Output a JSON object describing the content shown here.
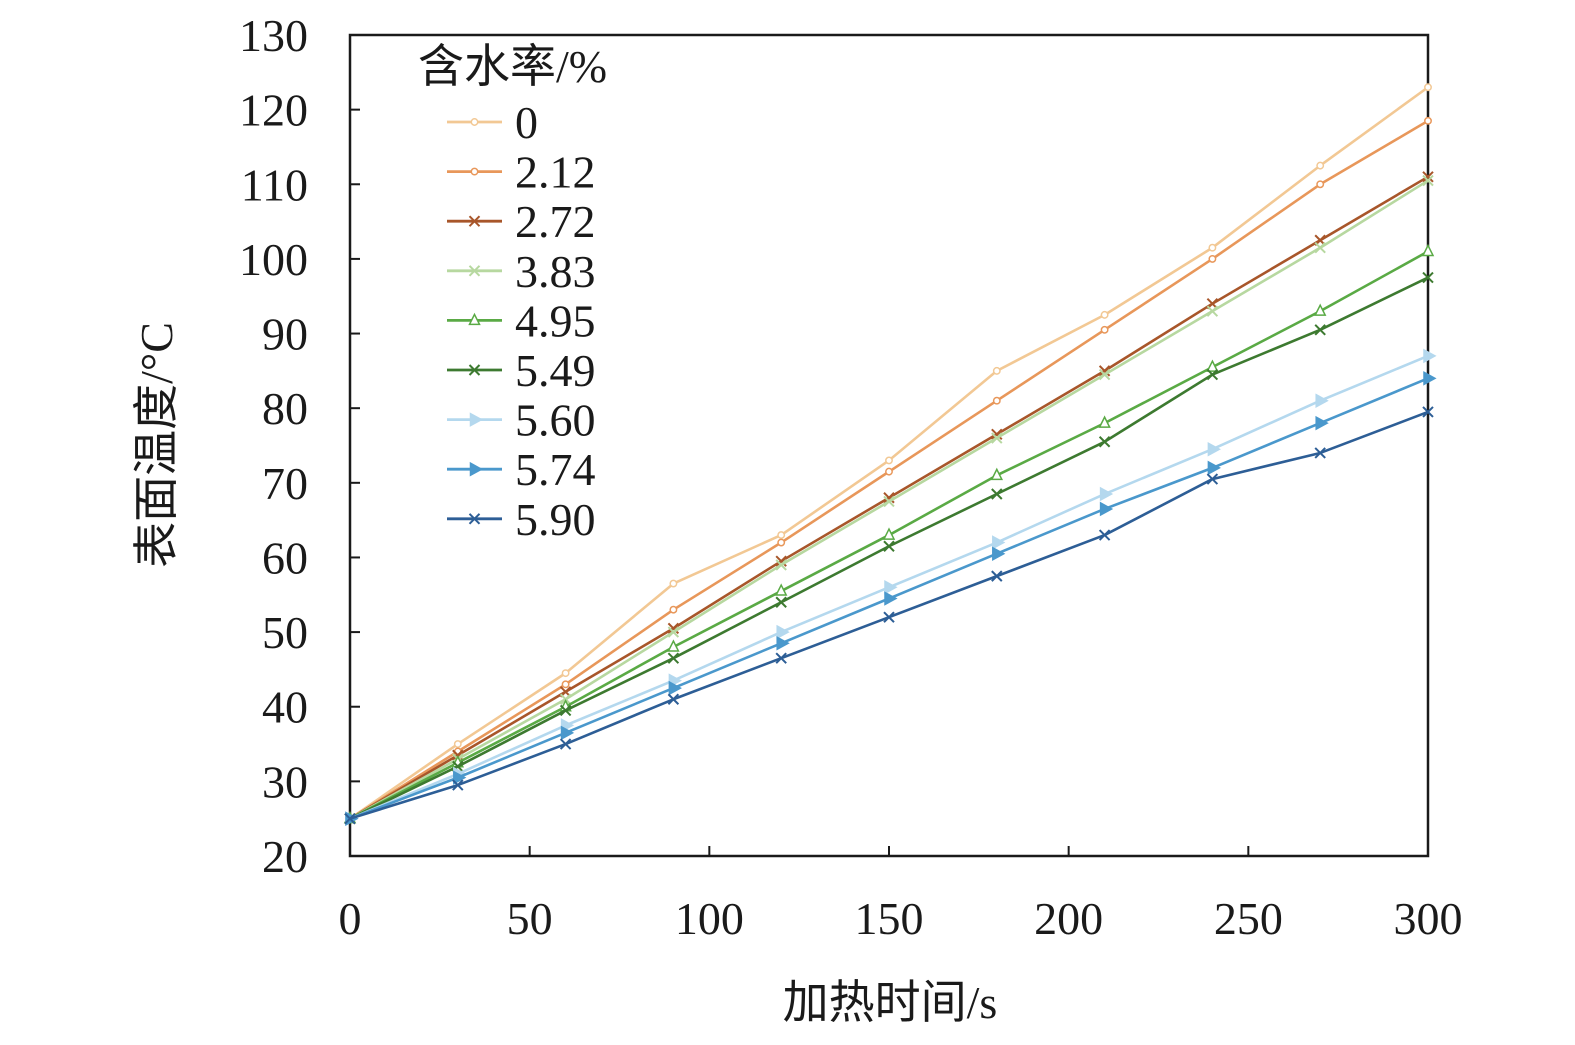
{
  "chart_data": {
    "type": "line",
    "title": "",
    "xlabel": "加热时间/s",
    "ylabel": "表面温度/°C",
    "xlim": [
      0,
      300
    ],
    "ylim": [
      20,
      130
    ],
    "xticks": [
      0,
      50,
      100,
      150,
      200,
      250,
      300
    ],
    "yticks": [
      20,
      30,
      40,
      50,
      60,
      70,
      80,
      90,
      100,
      110,
      120,
      130
    ],
    "grid": false,
    "legend": {
      "title": "含水率/%",
      "position": "top-left"
    },
    "x": [
      0,
      30,
      60,
      90,
      120,
      150,
      180,
      210,
      240,
      270,
      300
    ],
    "series": [
      {
        "name": "0",
        "color": "#f2c894",
        "marker": "dot",
        "values": [
          25,
          35,
          44.5,
          56.5,
          63,
          73,
          85,
          92.5,
          101.5,
          112.5,
          123
        ]
      },
      {
        "name": "2.12",
        "color": "#e8975a",
        "marker": "dot",
        "values": [
          25,
          34,
          43,
          53,
          62,
          71.5,
          81,
          90.5,
          100,
          110,
          118.5
        ]
      },
      {
        "name": "2.72",
        "color": "#a8562a",
        "marker": "x",
        "values": [
          25,
          33.5,
          42,
          50.5,
          59.5,
          68,
          76.5,
          85,
          94,
          102.5,
          111
        ]
      },
      {
        "name": "3.83",
        "color": "#b7d8a0",
        "marker": "x",
        "values": [
          25,
          33,
          41,
          50,
          59,
          67.5,
          76,
          84.5,
          93,
          101.5,
          110.5
        ]
      },
      {
        "name": "4.95",
        "color": "#5aaa45",
        "marker": "triangle",
        "values": [
          25,
          32.5,
          40,
          48,
          55.5,
          63,
          71,
          78,
          85.5,
          93,
          101
        ]
      },
      {
        "name": "5.49",
        "color": "#3d7a30",
        "marker": "x",
        "values": [
          25,
          32,
          39.5,
          46.5,
          54,
          61.5,
          68.5,
          75.5,
          84.5,
          90.5,
          97.5
        ]
      },
      {
        "name": "5.60",
        "color": "#b4d8ee",
        "marker": "triangle-right",
        "values": [
          25,
          31,
          37.5,
          43.5,
          50,
          56,
          62,
          68.5,
          74.5,
          81,
          87
        ]
      },
      {
        "name": "5.74",
        "color": "#4a98cc",
        "marker": "triangle-right",
        "values": [
          25,
          30.5,
          36.5,
          42.5,
          48.5,
          54.5,
          60.5,
          66.5,
          72,
          78,
          84
        ]
      },
      {
        "name": "5.90",
        "color": "#2d5e96",
        "marker": "x",
        "values": [
          25,
          29.5,
          35,
          41,
          46.5,
          52,
          57.5,
          63,
          70.5,
          74,
          79.5
        ]
      }
    ]
  }
}
